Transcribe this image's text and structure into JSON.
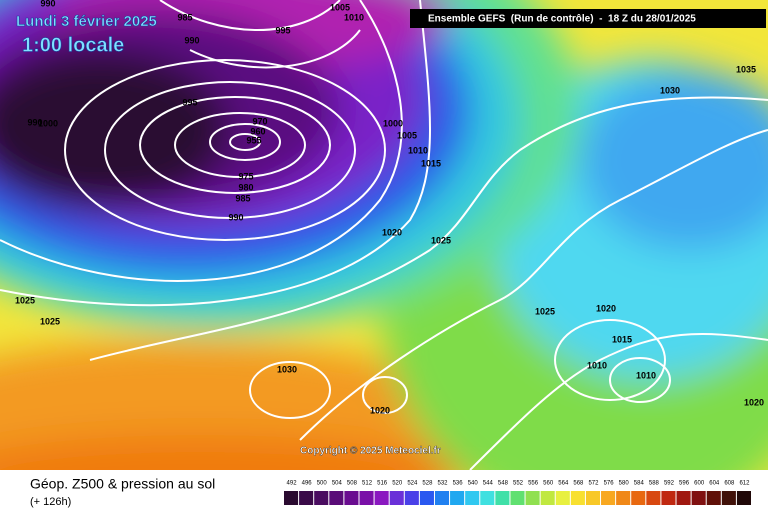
{
  "header": {
    "date": "Lundi 3 février 2025",
    "time": "1:00 locale",
    "run": "Ensemble GEFS  (Run de contrôle)  -  18 Z du 28/01/2025"
  },
  "copyright": "Copyright © 2025 Meteociel.fr",
  "footer": {
    "title": "Géop. Z500 & pression au sol",
    "lead": "(+ 126h)"
  },
  "colorbar": {
    "levels": [
      492,
      496,
      500,
      504,
      508,
      512,
      516,
      520,
      524,
      528,
      532,
      536,
      540,
      544,
      548,
      552,
      556,
      560,
      564,
      568,
      572,
      576,
      580,
      584,
      588,
      592,
      596,
      600,
      604,
      608,
      612
    ],
    "colors": [
      "#2a0a30",
      "#3a0a48",
      "#4a0c60",
      "#5a0c78",
      "#6a0c90",
      "#7a10a8",
      "#8a18c0",
      "#6a30d8",
      "#4a40e8",
      "#2a58f0",
      "#2080f0",
      "#20a8f0",
      "#30c8f0",
      "#40e0e0",
      "#40e0a8",
      "#60e070",
      "#90e050",
      "#c0e840",
      "#e8f040",
      "#f8e030",
      "#f8c828",
      "#f8a820",
      "#f08818",
      "#e86810",
      "#d84810",
      "#c02810",
      "#a01810",
      "#801010",
      "#601008",
      "#401008",
      "#200808"
    ]
  },
  "isobar_labels": [
    "990",
    "1000",
    "1005",
    "1010",
    "985",
    "990",
    "995",
    "995",
    "990",
    "970",
    "960",
    "955",
    "975",
    "980",
    "985",
    "990",
    "1000",
    "1005",
    "1010",
    "1015",
    "1020",
    "1025",
    "1030",
    "1035",
    "1025",
    "1025",
    "1030",
    "1020",
    "1025",
    "1020",
    "1015",
    "1010",
    "1010",
    "1020"
  ]
}
